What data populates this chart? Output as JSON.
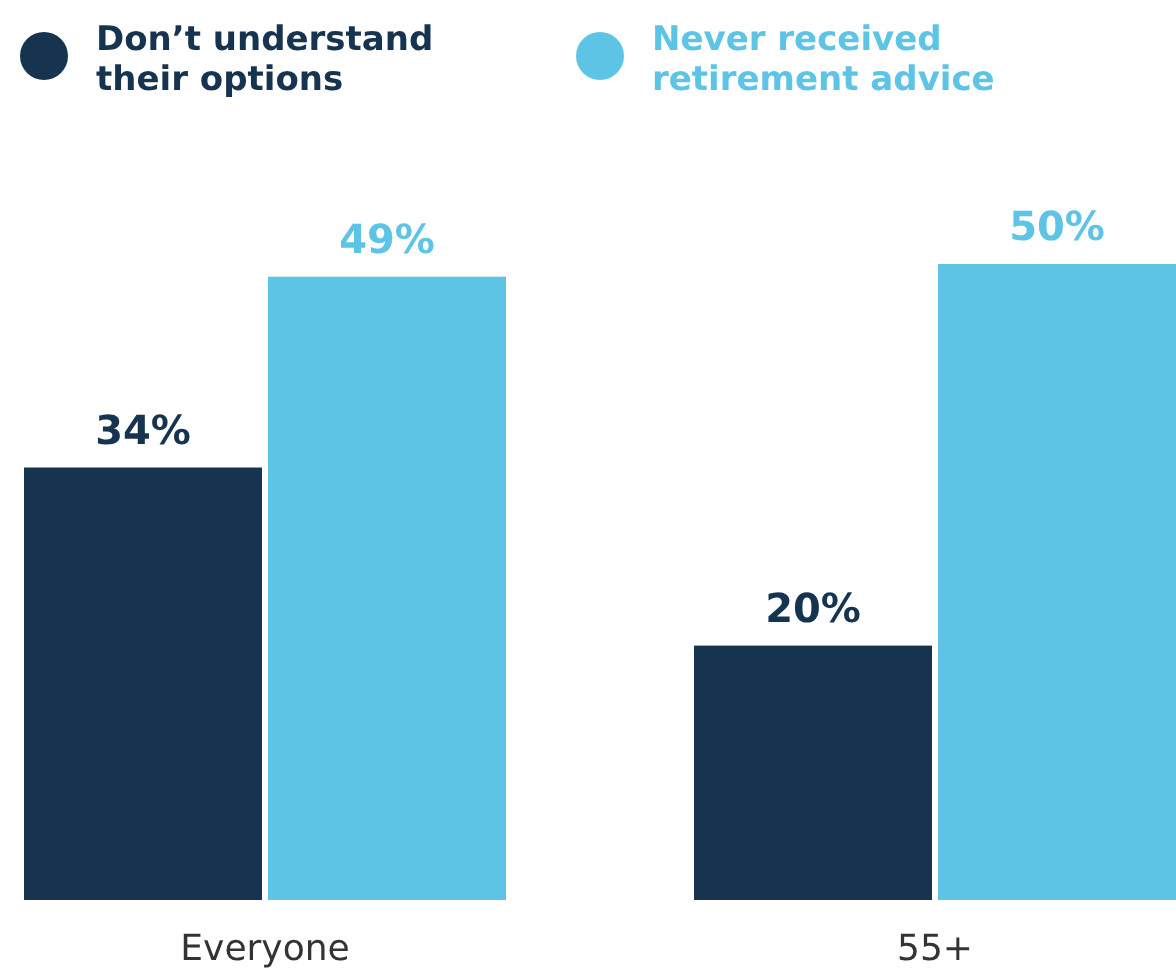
{
  "chart_data": {
    "type": "bar",
    "categories": [
      "Everyone",
      "55+"
    ],
    "series": [
      {
        "name": "Don’t understand their options",
        "color": "#16334f",
        "values": [
          34,
          20
        ],
        "value_labels": [
          "34%",
          "20%"
        ]
      },
      {
        "name": "Never received retirement advice",
        "color": "#5ec4e6",
        "values": [
          49,
          50
        ],
        "value_labels": [
          "49%",
          "50%"
        ]
      }
    ],
    "legend": "top left"
  }
}
